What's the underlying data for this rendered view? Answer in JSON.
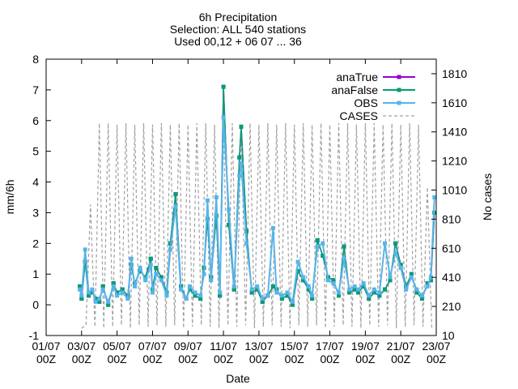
{
  "chart_data": {
    "type": "line",
    "title": [
      "6h Precipitation",
      "Selection: ALL    540 stations",
      "Used 00,12 + 06 07 ... 36"
    ],
    "xlabel": "Date",
    "ylabel": "mm/6h",
    "y2label": "No cases",
    "x_range": [
      "2015-07-01 00Z",
      "2015-07-23 00Z"
    ],
    "ylim": [
      -1,
      8
    ],
    "y2lim": [
      10,
      1910
    ],
    "x_ticks": [
      {
        "line1": "01/07",
        "line2": "00Z"
      },
      {
        "line1": "03/07",
        "line2": "00Z"
      },
      {
        "line1": "05/07",
        "line2": "00Z"
      },
      {
        "line1": "07/07",
        "line2": "00Z"
      },
      {
        "line1": "09/07",
        "line2": "00Z"
      },
      {
        "line1": "11/07",
        "line2": "00Z"
      },
      {
        "line1": "13/07",
        "line2": "00Z"
      },
      {
        "line1": "15/07",
        "line2": "00Z"
      },
      {
        "line1": "17/07",
        "line2": "00Z"
      },
      {
        "line1": "19/07",
        "line2": "00Z"
      },
      {
        "line1": "21/07",
        "line2": "00Z"
      },
      {
        "line1": "23/07",
        "line2": "00Z"
      }
    ],
    "y_ticks": [
      "-1",
      "0",
      "1",
      "2",
      "3",
      "4",
      "5",
      "6",
      "7",
      "8"
    ],
    "y2_ticks": [
      "10",
      "210",
      "410",
      "610",
      "810",
      "1010",
      "1210",
      "1410",
      "1610",
      "1810"
    ],
    "legend_position": "top-right",
    "grid": false,
    "series": [
      {
        "name": "anaTrue",
        "color": "#9400d3",
        "style": "line+points",
        "axis": "y1",
        "x": [
          1.9,
          2.0,
          2.2,
          2.4,
          2.6,
          2.8,
          3.0,
          3.2,
          3.5,
          3.8,
          4.0,
          4.3,
          4.6,
          4.8,
          5.0,
          5.3,
          5.6,
          5.9,
          6.0,
          6.2,
          6.5,
          6.8,
          7.0,
          7.3,
          7.6,
          7.9,
          8.1,
          8.4,
          8.7,
          8.9,
          9.1,
          9.3,
          9.6,
          9.8,
          10.0,
          10.3,
          10.6,
          10.9,
          11.0,
          11.3,
          11.6,
          11.9,
          12.2,
          12.5,
          12.8,
          13.0,
          13.3,
          13.6,
          13.9,
          14.2,
          14.5,
          14.8,
          15.0,
          15.3,
          15.6,
          15.9,
          16.2,
          16.5,
          16.8,
          17.1,
          17.4,
          17.6,
          17.9,
          18.2,
          18.5,
          18.8,
          19.1,
          19.4,
          19.7,
          20.0,
          20.3,
          20.6,
          20.9,
          21.2,
          21.5,
          21.7,
          21.9
        ],
        "y": [
          0.6,
          0.2,
          1.4,
          0.3,
          0.4,
          0.2,
          0.1,
          0.6,
          0.0,
          0.7,
          0.4,
          0.5,
          0.3,
          1.3,
          0.7,
          1.1,
          0.9,
          1.5,
          0.5,
          1.2,
          0.9,
          0.4,
          2.0,
          3.6,
          0.6,
          0.2,
          0.5,
          0.3,
          0.2,
          1.2,
          2.8,
          0.9,
          2.9,
          0.3,
          7.1,
          2.6,
          0.5,
          4.8,
          5.8,
          2.4,
          0.4,
          0.5,
          0.1,
          0.3,
          0.6,
          0.5,
          0.2,
          0.3,
          0.0,
          1.1,
          0.8,
          0.5,
          0.2,
          2.1,
          1.6,
          0.9,
          0.8,
          0.3,
          1.9,
          0.4,
          0.5,
          0.4,
          0.6,
          0.2,
          0.4,
          0.3,
          0.5,
          0.8,
          2.0,
          1.3,
          0.6,
          1.0,
          0.4,
          0.2,
          0.7,
          0.8,
          3.0
        ]
      },
      {
        "name": "anaFalse",
        "color": "#009e73",
        "style": "line+points",
        "axis": "y1",
        "x": [
          1.9,
          2.0,
          2.2,
          2.4,
          2.6,
          2.8,
          3.0,
          3.2,
          3.5,
          3.8,
          4.0,
          4.3,
          4.6,
          4.8,
          5.0,
          5.3,
          5.6,
          5.9,
          6.0,
          6.2,
          6.5,
          6.8,
          7.0,
          7.3,
          7.6,
          7.9,
          8.1,
          8.4,
          8.7,
          8.9,
          9.1,
          9.3,
          9.6,
          9.8,
          10.0,
          10.3,
          10.6,
          10.9,
          11.0,
          11.3,
          11.6,
          11.9,
          12.2,
          12.5,
          12.8,
          13.0,
          13.3,
          13.6,
          13.9,
          14.2,
          14.5,
          14.8,
          15.0,
          15.3,
          15.6,
          15.9,
          16.2,
          16.5,
          16.8,
          17.1,
          17.4,
          17.6,
          17.9,
          18.2,
          18.5,
          18.8,
          19.1,
          19.4,
          19.7,
          20.0,
          20.3,
          20.6,
          20.9,
          21.2,
          21.5,
          21.7,
          21.9
        ],
        "y": [
          0.6,
          0.2,
          1.4,
          0.3,
          0.4,
          0.2,
          0.1,
          0.6,
          0.0,
          0.7,
          0.4,
          0.5,
          0.3,
          1.3,
          0.7,
          1.1,
          0.9,
          1.5,
          0.5,
          1.2,
          0.9,
          0.4,
          2.0,
          3.6,
          0.6,
          0.2,
          0.5,
          0.3,
          0.2,
          1.2,
          2.8,
          0.9,
          2.9,
          0.3,
          7.1,
          2.6,
          0.5,
          4.8,
          5.8,
          2.4,
          0.4,
          0.5,
          0.1,
          0.3,
          0.6,
          0.5,
          0.2,
          0.3,
          0.0,
          1.1,
          0.8,
          0.5,
          0.2,
          2.1,
          1.6,
          0.9,
          0.8,
          0.3,
          1.9,
          0.4,
          0.5,
          0.4,
          0.6,
          0.2,
          0.4,
          0.3,
          0.5,
          0.8,
          2.0,
          1.3,
          0.6,
          1.0,
          0.4,
          0.2,
          0.7,
          0.8,
          3.0
        ]
      },
      {
        "name": "OBS",
        "color": "#56b4e9",
        "style": "line+points",
        "axis": "y1",
        "x": [
          1.9,
          2.0,
          2.2,
          2.4,
          2.6,
          2.8,
          3.0,
          3.2,
          3.5,
          3.8,
          4.0,
          4.3,
          4.6,
          4.8,
          5.0,
          5.3,
          5.6,
          5.9,
          6.0,
          6.2,
          6.5,
          6.8,
          7.0,
          7.3,
          7.6,
          7.9,
          8.1,
          8.4,
          8.7,
          8.9,
          9.1,
          9.3,
          9.6,
          9.8,
          10.0,
          10.3,
          10.6,
          10.9,
          11.0,
          11.3,
          11.6,
          11.9,
          12.2,
          12.5,
          12.8,
          13.0,
          13.3,
          13.6,
          13.9,
          14.2,
          14.5,
          14.8,
          15.0,
          15.3,
          15.6,
          15.9,
          16.2,
          16.5,
          16.8,
          17.1,
          17.4,
          17.6,
          17.9,
          18.2,
          18.5,
          18.8,
          19.1,
          19.4,
          19.7,
          20.0,
          20.3,
          20.6,
          20.9,
          21.2,
          21.5,
          21.7,
          21.9
        ],
        "y": [
          0.5,
          0.3,
          1.8,
          0.4,
          0.5,
          0.1,
          0.2,
          0.5,
          0.1,
          0.6,
          0.3,
          0.4,
          0.2,
          1.5,
          0.6,
          1.2,
          0.8,
          1.3,
          0.4,
          1.0,
          0.8,
          0.3,
          1.8,
          3.2,
          0.5,
          0.2,
          0.6,
          0.4,
          0.3,
          1.0,
          3.4,
          0.8,
          3.5,
          0.4,
          6.1,
          3.1,
          0.6,
          4.2,
          4.6,
          2.0,
          0.5,
          0.6,
          0.2,
          0.3,
          2.5,
          0.4,
          0.3,
          0.4,
          0.1,
          1.4,
          0.9,
          0.6,
          0.3,
          1.9,
          2.0,
          0.8,
          0.7,
          0.4,
          1.5,
          0.5,
          0.6,
          0.5,
          0.7,
          0.3,
          0.5,
          0.4,
          2.0,
          0.9,
          1.7,
          1.2,
          0.5,
          0.9,
          0.5,
          0.3,
          0.6,
          0.9,
          3.5
        ]
      },
      {
        "name": "CASES",
        "color": "#a0a0a0",
        "style": "dashed",
        "axis": "y2",
        "x": [
          2.0,
          2.25,
          2.5,
          2.75,
          3.0,
          3.25,
          3.5,
          3.75,
          4.0,
          4.25,
          4.5,
          4.75,
          5.0,
          5.25,
          5.5,
          5.75,
          6.0,
          6.25,
          6.5,
          6.75,
          7.0,
          7.25,
          7.5,
          7.75,
          8.0,
          8.25,
          8.5,
          8.75,
          9.0,
          9.25,
          9.5,
          9.75,
          10.0,
          10.25,
          10.5,
          10.75,
          11.0,
          11.25,
          11.5,
          11.75,
          12.0,
          12.25,
          12.5,
          12.75,
          13.0,
          13.25,
          13.5,
          13.75,
          14.0,
          14.25,
          14.5,
          14.75,
          15.0,
          15.25,
          15.5,
          15.75,
          16.0,
          16.25,
          16.5,
          16.75,
          17.0,
          17.25,
          17.5,
          17.75,
          18.0,
          18.25,
          18.5,
          18.75,
          19.0,
          19.25,
          19.5,
          19.75,
          20.0,
          20.25,
          20.5,
          20.75,
          21.0,
          21.25,
          21.5,
          21.75
        ],
        "y": [
          60,
          80,
          910,
          70,
          1470,
          60,
          1470,
          70,
          1460,
          80,
          1470,
          60,
          1460,
          80,
          1470,
          70,
          1460,
          80,
          1470,
          70,
          1460,
          80,
          1470,
          60,
          1460,
          70,
          1470,
          80,
          1470,
          70,
          1460,
          60,
          1470,
          80,
          1470,
          70,
          1460,
          80,
          1470,
          60,
          1460,
          70,
          1470,
          80,
          1460,
          70,
          1470,
          60,
          1460,
          80,
          1470,
          70,
          1460,
          80,
          1470,
          60,
          1460,
          70,
          1470,
          80,
          1470,
          70,
          1460,
          60,
          1470,
          80,
          1470,
          70,
          1460,
          80,
          1470,
          60,
          1460,
          70,
          1470,
          80,
          1460,
          70,
          1030,
          60
        ]
      }
    ]
  }
}
